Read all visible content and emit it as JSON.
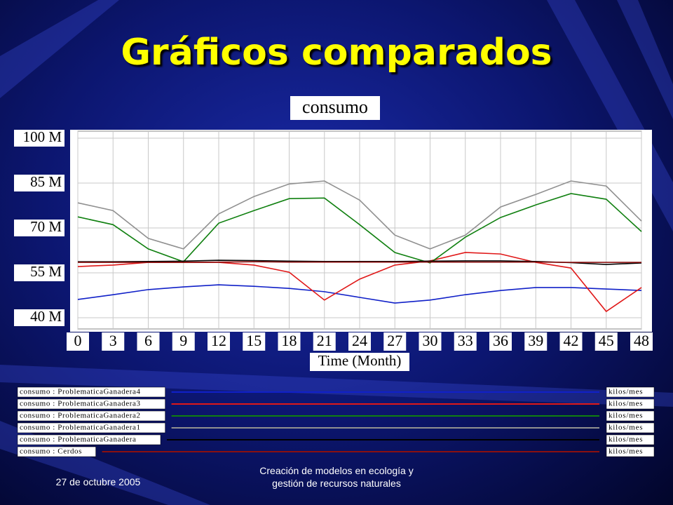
{
  "slide": {
    "title": "Gráficos comparados",
    "footer_date": "27 de octubre 2005",
    "footer_text": [
      "Creación de modelos en ecología y",
      "gestión de recursos naturales"
    ]
  },
  "chart_data": {
    "type": "line",
    "title": "consumo",
    "x_label": "Time (Month)",
    "x": [
      0,
      3,
      6,
      9,
      12,
      15,
      18,
      21,
      24,
      27,
      30,
      33,
      36,
      39,
      42,
      45,
      48
    ],
    "xlim": [
      0,
      48
    ],
    "xticks": [
      0,
      3,
      6,
      9,
      12,
      15,
      18,
      21,
      24,
      27,
      30,
      33,
      36,
      39,
      42,
      45,
      48
    ],
    "ylim": [
      40,
      100
    ],
    "yticks": [
      {
        "value": 40,
        "label": "40 M"
      },
      {
        "value": 55,
        "label": "55 M"
      },
      {
        "value": 70,
        "label": "70 M"
      },
      {
        "value": 85,
        "label": "85 M"
      },
      {
        "value": 100,
        "label": "100 M"
      }
    ],
    "grid": true,
    "series": [
      {
        "name": "consumo : ProblematicaGanadera4",
        "unit": "kilos/mes",
        "color": "#1020c8",
        "values": [
          46.1,
          47.7,
          49.4,
          50.3,
          51.0,
          50.5,
          49.8,
          48.7,
          46.8,
          44.9,
          45.9,
          47.7,
          49.1,
          50.1,
          50.1,
          49.6,
          49.1
        ]
      },
      {
        "name": "consumo : ProblematicaGanadera3",
        "unit": "kilos/mes",
        "color": "#e01818",
        "values": [
          57.1,
          57.6,
          58.5,
          58.5,
          58.5,
          57.6,
          55.2,
          45.9,
          52.9,
          57.6,
          59.0,
          61.8,
          61.3,
          58.5,
          56.6,
          42.1,
          50.1
        ]
      },
      {
        "name": "consumo : ProblematicaGanadera2",
        "unit": "kilos/mes",
        "color": "#108010",
        "values": [
          73.7,
          71.1,
          63.0,
          58.7,
          71.6,
          75.8,
          79.8,
          80.0,
          71.1,
          61.8,
          58.3,
          66.9,
          73.5,
          77.7,
          81.5,
          79.6,
          68.8
        ]
      },
      {
        "name": "consumo : ProblematicaGanadera1",
        "unit": "kilos/mes",
        "color": "#909090",
        "values": [
          78.4,
          75.8,
          66.5,
          63.0,
          74.7,
          80.5,
          84.7,
          85.7,
          79.3,
          67.6,
          63.0,
          67.6,
          77.0,
          81.2,
          85.7,
          84.0,
          72.3
        ]
      },
      {
        "name": "consumo : ProblematicaGanadera",
        "unit": "kilos/mes",
        "color": "#000000",
        "values": [
          58.7,
          58.7,
          58.8,
          58.9,
          59.2,
          59.1,
          58.9,
          58.8,
          58.8,
          58.8,
          58.9,
          59.0,
          59.0,
          58.8,
          58.4,
          57.8,
          58.3
        ]
      },
      {
        "name": "consumo : Cerdos",
        "unit": "kilos/mes",
        "color": "#8a1010",
        "values": [
          58.5,
          58.5,
          58.5,
          58.5,
          58.6,
          58.7,
          58.6,
          58.6,
          58.6,
          58.6,
          58.6,
          58.6,
          58.6,
          58.6,
          58.5,
          58.5,
          58.5
        ]
      }
    ]
  }
}
